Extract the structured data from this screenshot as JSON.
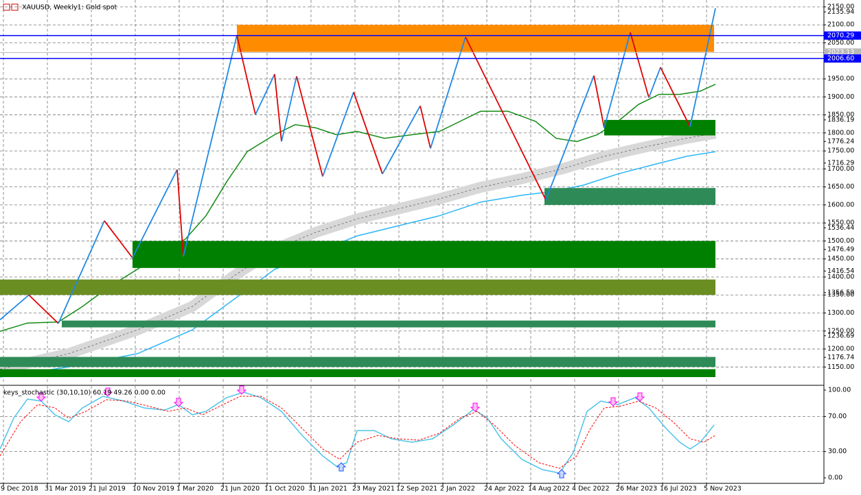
{
  "chart_data": [
    {
      "type": "line",
      "title": "XAUUSD, Weekly1:  Gold spot",
      "xlim": [
        -6.25,
        293.75
      ],
      "xticks": [
        {
          "value": -5,
          "label": "9 Dec 2018"
        },
        {
          "value": 11,
          "label": "31 Mar 2019"
        },
        {
          "value": 27,
          "label": "21 Jul 2019"
        },
        {
          "value": 43,
          "label": "10 Nov 2019"
        },
        {
          "value": 59,
          "label": "1 Mar 2020"
        },
        {
          "value": 75,
          "label": "21 Jun 2020"
        },
        {
          "value": 91,
          "label": "11 Oct 2020"
        },
        {
          "value": 107,
          "label": "31 Jan 2021"
        },
        {
          "value": 123,
          "label": "23 May 2021"
        },
        {
          "value": 139,
          "label": "12 Sep 2021"
        },
        {
          "value": 155,
          "label": "2 Jan 2022"
        },
        {
          "value": 171,
          "label": "24 Apr 2022"
        },
        {
          "value": 187,
          "label": "14 Aug 2022"
        },
        {
          "value": 203,
          "label": "4 Dec 2022"
        },
        {
          "value": 219,
          "label": "26 Mar 2023"
        },
        {
          "value": 235,
          "label": "16 Jul 2023"
        },
        {
          "value": 251,
          "label": "5 Nov 2023"
        }
      ],
      "ylim": [
        1103,
        2169
      ],
      "yticks": [
        {
          "value": 2150,
          "label": "2150.00"
        },
        {
          "value": 2100,
          "label": "2100.00"
        },
        {
          "value": 2050,
          "label": "2050.00"
        },
        {
          "value": 1950,
          "label": "1950.00"
        },
        {
          "value": 1900,
          "label": "1900.00"
        },
        {
          "value": 1850,
          "label": "1850.00"
        },
        {
          "value": 1800,
          "label": "1800.00"
        },
        {
          "value": 1750,
          "label": "1750.00"
        },
        {
          "value": 1700,
          "label": "1700.00"
        },
        {
          "value": 1650,
          "label": "1650.00"
        },
        {
          "value": 1600,
          "label": "1600.00"
        },
        {
          "value": 1550,
          "label": "1550.00"
        },
        {
          "value": 1500,
          "label": "1500.00"
        },
        {
          "value": 1450,
          "label": "1450.00"
        },
        {
          "value": 1400,
          "label": "1400.00"
        },
        {
          "value": 1350,
          "label": "1350.00"
        },
        {
          "value": 1300,
          "label": "1300.00"
        },
        {
          "value": 1250,
          "label": "1250.00"
        },
        {
          "value": 1200,
          "label": "1200.00"
        },
        {
          "value": 1150,
          "label": "1150.00"
        }
      ],
      "levels": [
        2135.94,
        1836.19,
        1776.24,
        1716.29,
        1536.44,
        1476.49,
        1416.54,
        1356.59,
        1236.69,
        1176.74
      ],
      "price_lines": [
        {
          "value": 2070.29,
          "label": "2070.29",
          "color": "#0000ff"
        },
        {
          "value": 2023.13,
          "label": "2023.13",
          "color": "#b8b8b8"
        },
        {
          "value": 2006.6,
          "label": "2006.60",
          "color": "#0000ff"
        }
      ],
      "grid": true,
      "series": [
        {
          "color": "#d8d8d8",
          "style": "band",
          "x": [
            -6.25,
            18.75,
            43.75,
            63.75,
            78.75,
            93.75,
            108.75,
            123.75,
            138.75,
            153.75,
            168.75,
            183.75,
            198.75,
            213.75,
            228.75,
            243.75,
            254.25
          ],
          "values": [
            1144,
            1187,
            1253,
            1318,
            1402,
            1477,
            1524,
            1561,
            1589,
            1617,
            1649,
            1673,
            1701,
            1735,
            1761,
            1785,
            1799
          ]
        },
        {
          "color": "#29b6f6",
          "style": "solid",
          "x": [
            -6.25,
            18.75,
            43.75,
            63.75,
            78.75,
            93.75,
            108.75,
            123.75,
            138.75,
            153.75,
            168.75,
            183.75,
            193.75,
            206.25,
            218.75,
            231.25,
            243.75,
            254.25
          ],
          "values": [
            1122,
            1150,
            1187,
            1253,
            1337,
            1421,
            1468,
            1514,
            1542,
            1570,
            1608,
            1627,
            1636,
            1655,
            1686,
            1711,
            1735,
            1748
          ]
        },
        {
          "color": "#138a13",
          "style": "solid",
          "x": [
            -6.25,
            3.75,
            15,
            23.75,
            33.75,
            43.75,
            53.75,
            61.25,
            68.75,
            76.25,
            83.75,
            93.75,
            101.25,
            108.75,
            116.25,
            123.75,
            133.75,
            143.75,
            153.75,
            161.25,
            168.75,
            178.75,
            188.75,
            196.25,
            203.75,
            211.25,
            218.75,
            226.25,
            233.75,
            241.25,
            248.75,
            254.25
          ],
          "values": [
            1249,
            1272,
            1275,
            1318,
            1374,
            1421,
            1477,
            1505,
            1570,
            1664,
            1748,
            1795,
            1823,
            1814,
            1795,
            1804,
            1785,
            1795,
            1804,
            1832,
            1860,
            1860,
            1832,
            1785,
            1776,
            1795,
            1832,
            1879,
            1907,
            1907,
            1916,
            1935
          ]
        }
      ],
      "zones": [
        {
          "color": "#ff8c00",
          "x": [
            80,
            253.75
          ],
          "y": [
            2025,
            2100
          ]
        },
        {
          "color": "#008000",
          "x": [
            213.75,
            254.25
          ],
          "y": [
            1793,
            1836
          ]
        },
        {
          "color": "#2e8b57",
          "x": [
            192,
            254.25
          ],
          "y": [
            1600,
            1647
          ]
        },
        {
          "color": "#008000",
          "x": [
            42,
            254.25
          ],
          "y": [
            1425,
            1500
          ]
        },
        {
          "color": "#6b8e23",
          "x": [
            -6.25,
            254.25
          ],
          "y": [
            1350,
            1393
          ]
        },
        {
          "color": "#2e8b57",
          "x": [
            16.25,
            254.25
          ],
          "y": [
            1260,
            1279
          ]
        },
        {
          "color": "#2e8b57",
          "x": [
            -6.25,
            254.25
          ],
          "y": [
            1150,
            1178
          ]
        },
        {
          "color": "#008000",
          "x": [
            -6.25,
            254.25
          ],
          "y": [
            1122,
            1144
          ]
        }
      ],
      "zigzag": {
        "up_color": "#1e88e5",
        "down_color": "#e00000",
        "x": [
          -6.25,
          4.25,
          15,
          31.75,
          42,
          58.25,
          60.5,
          80,
          86.75,
          93.75,
          96.25,
          101.75,
          111.25,
          122.5,
          133,
          146.75,
          150.5,
          163.25,
          192.5,
          210,
          213.75,
          223.25,
          230,
          234.25,
          245,
          254.25
        ],
        "values": [
          1281,
          1350,
          1271,
          1556,
          1453,
          1698,
          1457,
          2071,
          1851,
          1963,
          1776,
          1957,
          1679,
          1913,
          1686,
          1875,
          1757,
          2066,
          1614,
          1959,
          1814,
          2079,
          1898,
          1982,
          1817,
          2146
        ]
      }
    },
    {
      "type": "line",
      "title": "keys_stochastic (30,10,10) 60.19 49.26 0.00 0.00",
      "ylim": [
        -6.25,
        104.7
      ],
      "yticks": [
        {
          "value": 100,
          "label": "100.00"
        },
        {
          "value": 70,
          "label": "70.00"
        },
        {
          "value": 30,
          "label": "30.00"
        },
        {
          "value": 0,
          "label": "0.00"
        }
      ],
      "series": [
        {
          "color": "#4fc3e8",
          "style": "solid",
          "x": [
            -6.25,
            -1.25,
            3.75,
            8.75,
            13.75,
            18.75,
            23.75,
            31.25,
            38.75,
            46.25,
            53.75,
            58.75,
            63.75,
            68.75,
            76.25,
            82.5,
            88.75,
            96.25,
            103.75,
            111.25,
            116.25,
            120,
            123.75,
            130,
            136.25,
            143.75,
            151.25,
            158.75,
            166.25,
            171.25,
            176.25,
            183.75,
            191.25,
            197.5,
            202.5,
            207.5,
            212.5,
            218.75,
            225,
            230,
            236.25,
            241.25,
            245,
            248.75,
            253.75
          ],
          "values": [
            32.8,
            68,
            89.8,
            87.5,
            71.9,
            64,
            79.7,
            93,
            87.5,
            79.7,
            77.3,
            83.6,
            71.9,
            75.8,
            91.4,
            97.7,
            91.4,
            75.8,
            48.4,
            25,
            13.3,
            17.2,
            53.9,
            53.9,
            44.5,
            40.6,
            44.5,
            60.2,
            78.1,
            68,
            44.5,
            21.1,
            9.4,
            5.5,
            28.9,
            75.8,
            87.5,
            83.6,
            91.4,
            79.7,
            56.3,
            40.6,
            32.8,
            40.6,
            60.2
          ]
        },
        {
          "color": "#ff0000",
          "style": "dashed",
          "x": [
            -6.25,
            1.25,
            7.5,
            13.75,
            18.75,
            25,
            32.5,
            40,
            47.5,
            55,
            61.25,
            67.5,
            75,
            81.25,
            88.75,
            96.25,
            103.75,
            111.25,
            117.5,
            123.75,
            131.25,
            138.75,
            146.25,
            153.75,
            161.25,
            167.5,
            173.75,
            181.25,
            190,
            197.5,
            203.75,
            208.75,
            213.75,
            220,
            226.25,
            232.5,
            238.75,
            245,
            250,
            254.25
          ],
          "values": [
            25,
            64.1,
            83.6,
            79.7,
            68,
            75.8,
            89.1,
            87.5,
            82,
            75.8,
            79.7,
            71.9,
            83.6,
            93,
            93,
            79.7,
            56.3,
            32.8,
            21.1,
            40.6,
            48.4,
            44.5,
            43,
            50.8,
            68,
            75.8,
            60.2,
            36.7,
            17.2,
            10.9,
            25,
            56.3,
            79.7,
            82,
            87.5,
            79.7,
            64.1,
            44.5,
            40.6,
            48.4
          ]
        }
      ],
      "signals": {
        "down": {
          "color": "#ff00ff",
          "x": [
            8.75,
            33,
            58.75,
            81.75,
            166.75,
            217,
            226.75
          ],
          "values": [
            87.5,
            93,
            81.3,
            95.3,
            75.8,
            82,
            87.5
          ]
        },
        "up": {
          "color": "#1e50ff",
          "x": [
            118,
            198.25
          ],
          "values": [
            17.2,
            9.4
          ]
        }
      }
    }
  ]
}
